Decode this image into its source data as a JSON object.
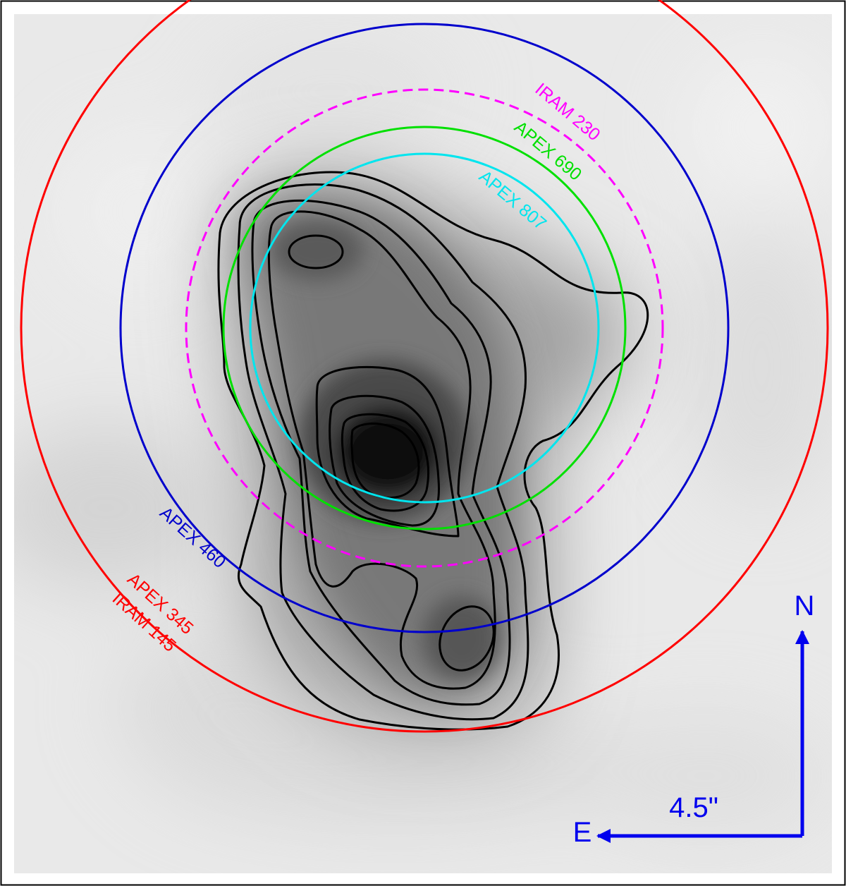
{
  "beams": [
    {
      "id": "apex-345-iram-145",
      "labels": [
        "APEX 345",
        "IRAM 145"
      ],
      "color": "#ff0000",
      "dashed": false
    },
    {
      "id": "apex-460",
      "labels": [
        "APEX 460"
      ],
      "color": "#0000cc",
      "dashed": false
    },
    {
      "id": "iram-230",
      "labels": [
        "IRAM 230"
      ],
      "color": "#ff00ff",
      "dashed": true
    },
    {
      "id": "apex-690",
      "labels": [
        "APEX 690"
      ],
      "color": "#00e000",
      "dashed": false
    },
    {
      "id": "apex-807",
      "labels": [
        "APEX 807"
      ],
      "color": "#00e5ee",
      "dashed": false
    }
  ],
  "orientation": {
    "north_label": "N",
    "east_label": "E",
    "scale_label": "4.5\"",
    "color": "#0000ee"
  },
  "contour_color": "#000000",
  "contour_levels": 8
}
